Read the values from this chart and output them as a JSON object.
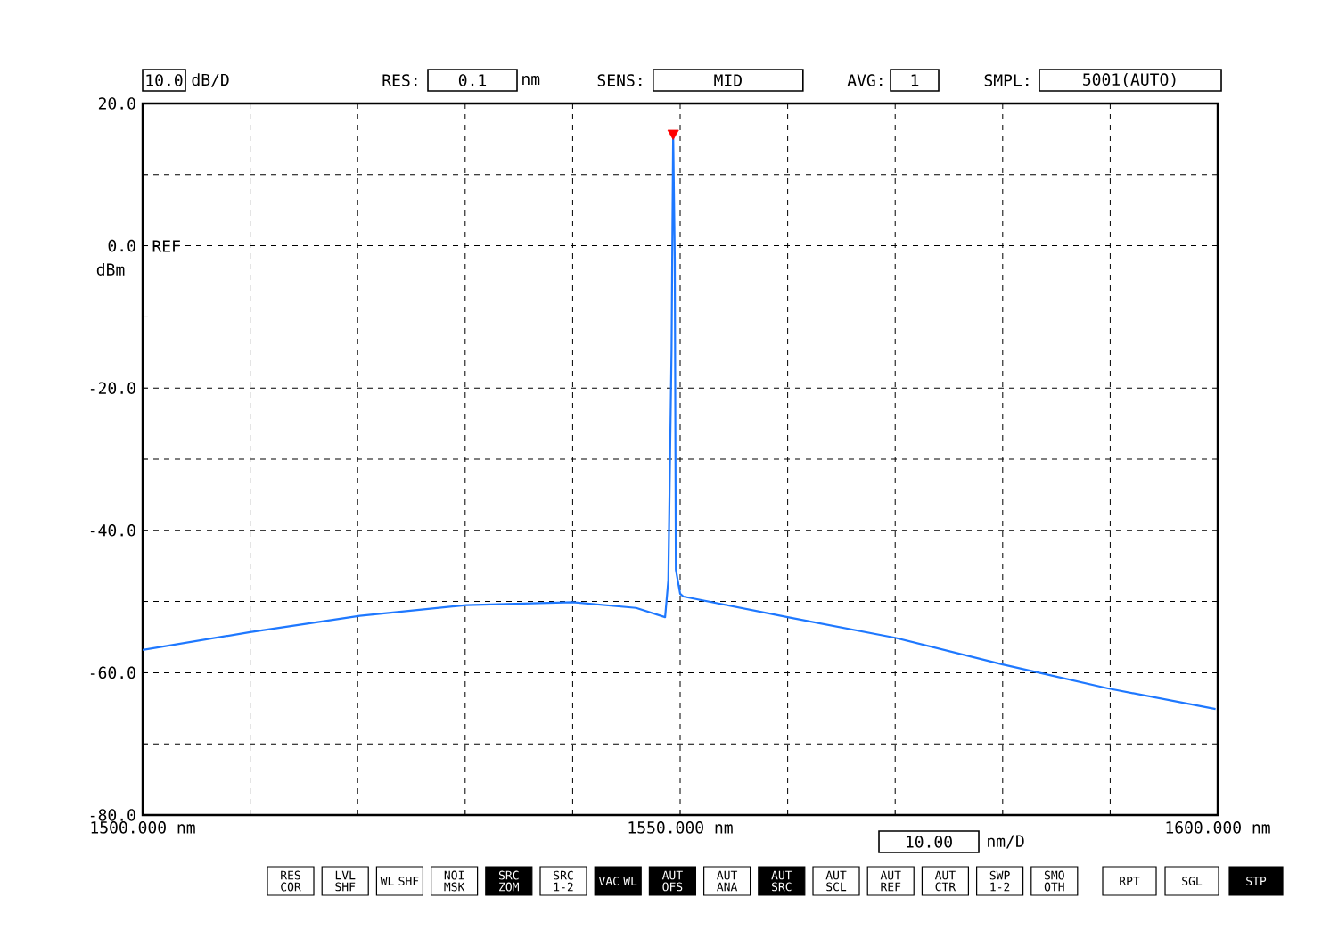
{
  "chart_data": {
    "type": "line",
    "xlim": [
      1500,
      1600
    ],
    "ylim": [
      -80,
      20
    ],
    "xticks": [
      {
        "value": 1500,
        "label": "1500.000 nm"
      },
      {
        "value": 1510,
        "label": null
      },
      {
        "value": 1520,
        "label": null
      },
      {
        "value": 1530,
        "label": null
      },
      {
        "value": 1540,
        "label": null
      },
      {
        "value": 1550,
        "label": "1550.000 nm"
      },
      {
        "value": 1560,
        "label": null
      },
      {
        "value": 1570,
        "label": null
      },
      {
        "value": 1580,
        "label": null
      },
      {
        "value": 1590,
        "label": null
      },
      {
        "value": 1600,
        "label": "1600.000 nm"
      }
    ],
    "yticks": [
      {
        "value": 20,
        "label": "20.0"
      },
      {
        "value": 10,
        "label": null
      },
      {
        "value": 0,
        "label": "0.0"
      },
      {
        "value": -10,
        "label": null
      },
      {
        "value": -20,
        "label": "-20.0"
      },
      {
        "value": -30,
        "label": null
      },
      {
        "value": -40,
        "label": "-40.0"
      },
      {
        "value": -50,
        "label": null
      },
      {
        "value": -60,
        "label": "-60.0"
      },
      {
        "value": -70,
        "label": null
      },
      {
        "value": -80,
        "label": "-80.0"
      }
    ],
    "grid": true,
    "series": [
      {
        "color": "#1e78ff",
        "marker": "none",
        "x": [
          1500,
          1510,
          1520.2,
          1530.1,
          1540,
          1545.9,
          1548.6,
          1548.9,
          1549.2,
          1549.35,
          1549.5,
          1549.6,
          1550,
          1550.3,
          1560,
          1570,
          1579.9,
          1589.8,
          1599.8
        ],
        "values": [
          -56.8,
          -54.3,
          -52,
          -50.5,
          -50.1,
          -50.9,
          -52.2,
          -47,
          -14.7,
          15.8,
          -1.8,
          -45.5,
          -48.9,
          -49.3,
          -52.2,
          -55.1,
          -58.8,
          -62.2,
          -65.1
        ]
      },
      {
        "type": "scatter",
        "color": "#ff0000",
        "marker": "triangle",
        "x": [
          1549.35
        ],
        "values": [
          15.8
        ]
      }
    ],
    "annotations": [
      "10.0",
      "dB/D",
      "RES:",
      "0.1",
      "nm",
      "SENS:",
      "MID",
      "AVG:",
      "1",
      "SMPL:",
      "5001(AUTO)",
      "REF",
      "dBm",
      "10.00",
      "nm/D",
      "RES COR",
      "LVL SHF",
      "WL SHF",
      "NOI MSK",
      "SRC ZOM",
      "SRC 1-2",
      "VAC WL",
      "AUT OFS",
      "AUT ANA",
      "AUT SRC",
      "AUT SCL",
      "AUT REF",
      "AUT CTR",
      "SWP 1-2",
      "SMO OTH",
      "RPT",
      "SGL",
      "STP"
    ]
  }
}
